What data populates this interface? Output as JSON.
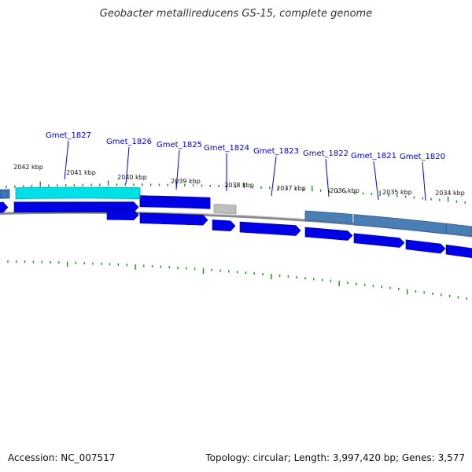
{
  "title": "Geobacter metallireducens GS-15, complete genome",
  "footer": {
    "accession": "Accession: NC_007517",
    "topology": "Topology: circular; Length: 3,997,420 bp; Genes: 3,577"
  },
  "genes": [
    {
      "name": "Gmet_1827",
      "strand": "reverse",
      "color": "#00e0e8"
    },
    {
      "name": "Gmet_1826",
      "strand": "forward",
      "color": "#0000e6"
    },
    {
      "name": "Gmet_1825",
      "strand": "reverse",
      "color": "#0000e6"
    },
    {
      "name": "Gmet_1824",
      "strand": "reverse",
      "color": "#bdbdbd"
    },
    {
      "name": "Gmet_1823",
      "strand": "forward",
      "color": "#0000e6"
    },
    {
      "name": "Gmet_1822",
      "strand": "reverse",
      "color": "#4a7fb5"
    },
    {
      "name": "Gmet_1821",
      "strand": "reverse",
      "color": "#4a7fb5"
    },
    {
      "name": "Gmet_1820",
      "strand": "reverse",
      "color": "#4a7fb5"
    }
  ],
  "kbp_labels": [
    "2042 kbp",
    "2041 kbp",
    "2040 kbp",
    "2039 kbp",
    "2038 kbp",
    "2037 kbp",
    "2036 kbp",
    "2035 kbp",
    "2034 kbp"
  ],
  "colors": {
    "backbone": "#8a8a8a",
    "tick": "#228b22",
    "label": "#0000cc"
  }
}
